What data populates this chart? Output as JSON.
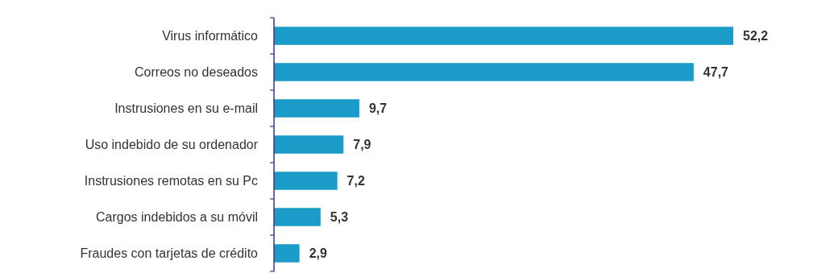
{
  "chart_data": {
    "type": "bar",
    "orientation": "horizontal",
    "categories": [
      "Virus informático",
      "Correos no deseados",
      "Instrusiones en su e-mail",
      "Uso indebido de su ordenador",
      "Instrusiones remotas en su Pc",
      "Cargos indebidos a su móvil",
      "Fraudes con tarjetas de crédito"
    ],
    "values": [
      52.2,
      47.7,
      9.7,
      7.9,
      7.2,
      5.3,
      2.9
    ],
    "value_labels": [
      "52,2",
      "47,7",
      "9,7",
      "7,9",
      "7,2",
      "5,3",
      "2,9"
    ],
    "color": "#1a9bc8"
  }
}
